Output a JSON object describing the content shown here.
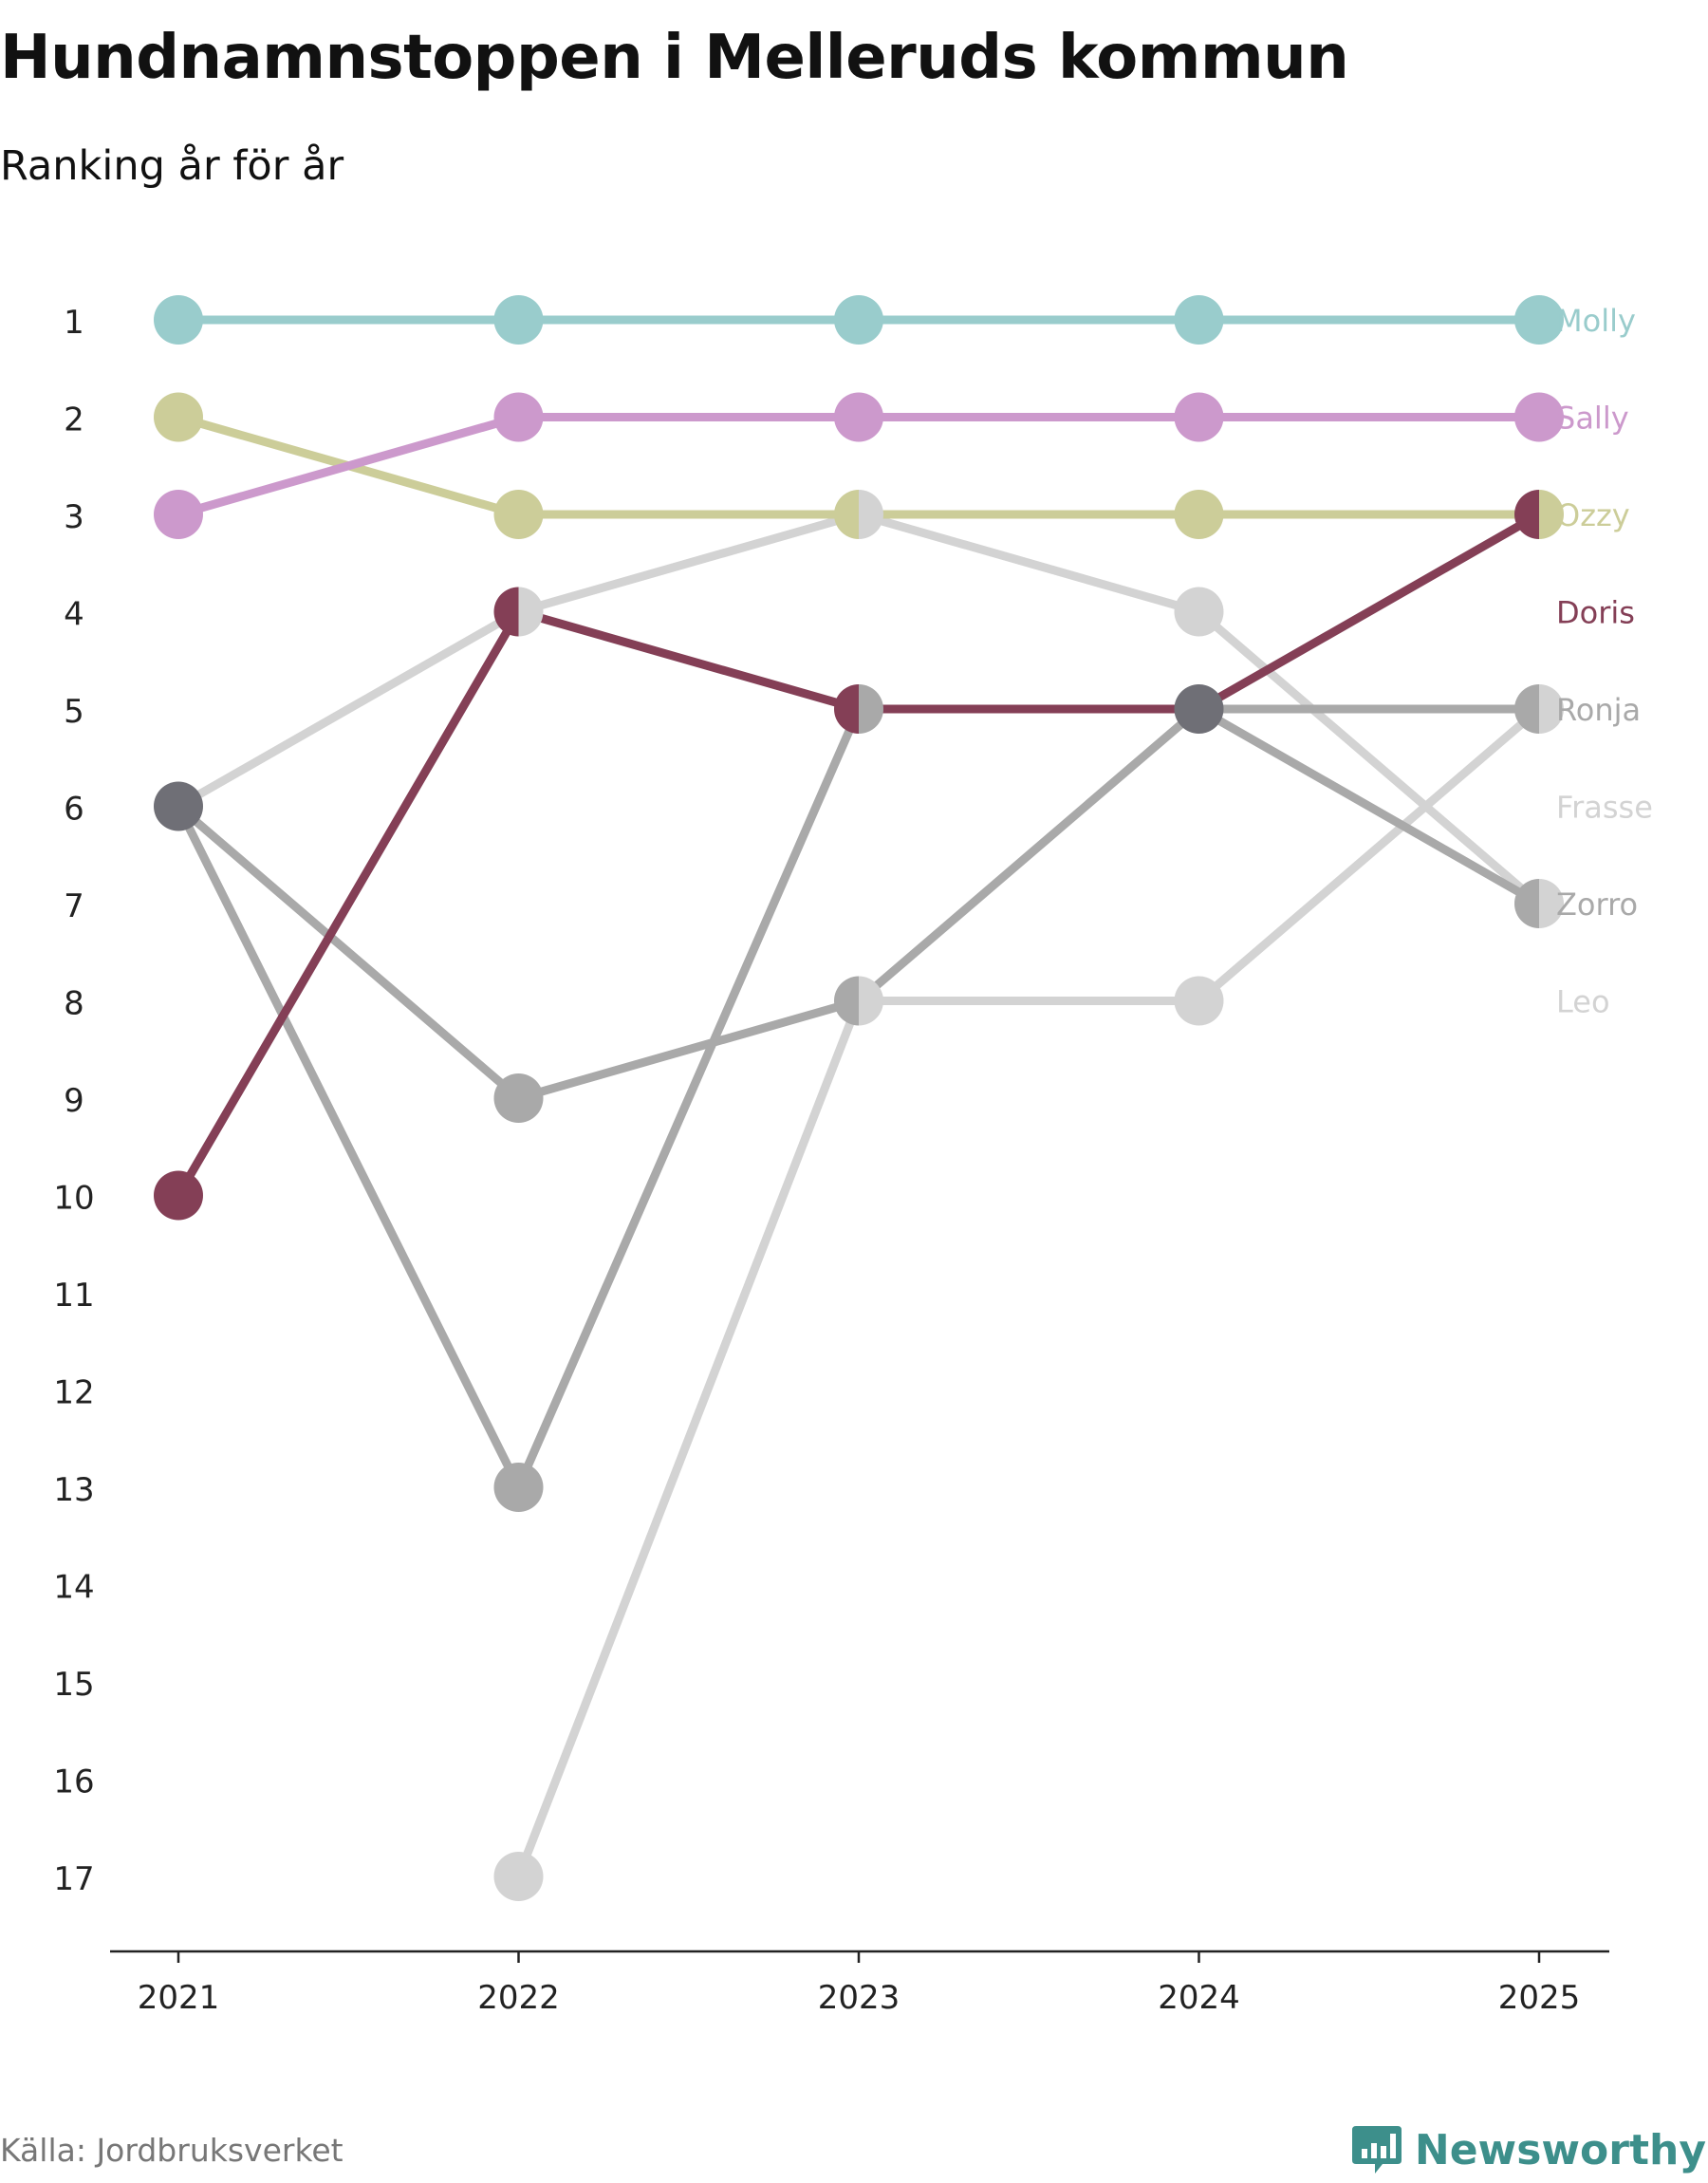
{
  "title": "Hundnamnstoppen i Melleruds kommun",
  "subtitle": "Ranking år för år",
  "source": "Källa: Jordbruksverket",
  "brand": "Newsworthy",
  "brand_icon": "newsworthy-logo-icon",
  "colors": {
    "axis": "#222222",
    "text": "#222222",
    "source": "#777777",
    "brand": "#3d8f8b"
  },
  "chart_data": {
    "type": "line",
    "chart_style": "bump",
    "title": "Hundnamnstoppen i Melleruds kommun",
    "subtitle": "Ranking år för år",
    "x": [
      2021,
      2022,
      2023,
      2024,
      2025
    ],
    "x_tick_labels": [
      "2021",
      "2022",
      "2023",
      "2024",
      "2025"
    ],
    "y_tick_labels": [
      "1",
      "2",
      "3",
      "4",
      "5",
      "6",
      "7",
      "8",
      "9",
      "10",
      "11",
      "12",
      "13",
      "14",
      "15",
      "16",
      "17"
    ],
    "ylim": [
      1,
      17
    ],
    "y_inverted": true,
    "xlabel": "",
    "ylabel": "",
    "grid": false,
    "legend": "end labels on the right",
    "series": [
      {
        "name": "Leo",
        "color": "#d3d3d3",
        "values": [
          null,
          17,
          8,
          8,
          5
        ]
      },
      {
        "name": "Frasse",
        "color": "#d3d3d3",
        "values": [
          6,
          4,
          3,
          4,
          7
        ]
      },
      {
        "name": "Zorro",
        "color": "#a9a9a9",
        "values": [
          6,
          9,
          8,
          5,
          7
        ]
      },
      {
        "name": "Ronja",
        "color": "#a9a9a9",
        "values": [
          6,
          13,
          5,
          5,
          5
        ]
      },
      {
        "name": "Ozzy",
        "color": "#cccd99",
        "values": [
          2,
          3,
          3,
          3,
          3
        ]
      },
      {
        "name": "Sally",
        "color": "#cc99cc",
        "values": [
          3,
          2,
          2,
          2,
          2
        ]
      },
      {
        "name": "Molly",
        "color": "#99cccc",
        "values": [
          1,
          1,
          1,
          1,
          1
        ]
      },
      {
        "name": "Doris",
        "color": "#843f56",
        "values": [
          10,
          4,
          5,
          5,
          3
        ]
      }
    ]
  }
}
